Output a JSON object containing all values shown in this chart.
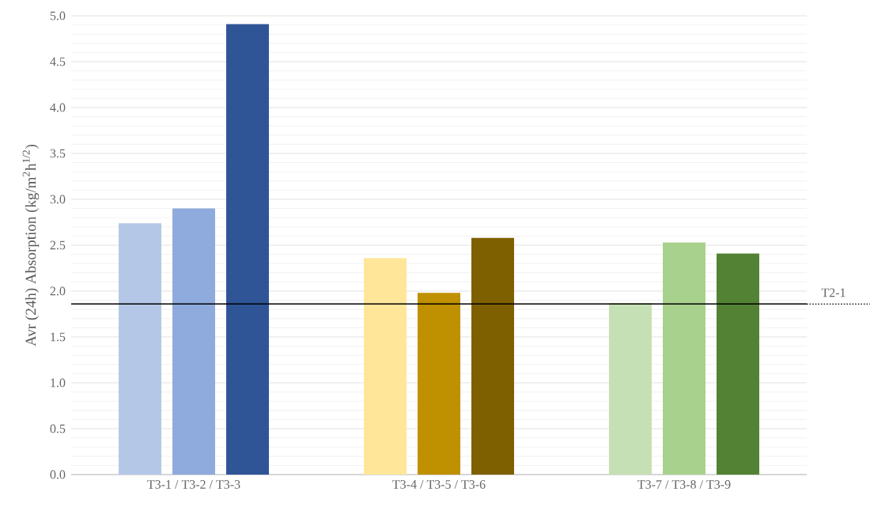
{
  "chart_data": {
    "type": "bar",
    "ylabel": "Avr (24h) Absorption (kg/m$^{2}$h$^{1/2}$)",
    "categories": [
      "T3-1 / T3-2 / T3-3",
      "T3-4 / T3-5 / T3-6",
      "T3-7 / T3-8 / T3-9"
    ],
    "series": [
      {
        "values": [
          2.74,
          2.36,
          1.87
        ],
        "colors": [
          "#b4c7e7",
          "#ffe699",
          "#c5e0b4"
        ]
      },
      {
        "values": [
          2.9,
          1.98,
          2.53
        ],
        "colors": [
          "#8faadc",
          "#bf9000",
          "#a9d18e"
        ]
      },
      {
        "values": [
          4.91,
          2.58,
          2.41
        ],
        "colors": [
          "#2f5597",
          "#7f6000",
          "#548235"
        ]
      }
    ],
    "ylim": [
      0,
      5
    ],
    "yticks": [
      {
        "value": 0,
        "label": "0.0"
      },
      {
        "value": 0.5,
        "label": "0.5"
      },
      {
        "value": 1,
        "label": "1.0"
      },
      {
        "value": 1.5,
        "label": "1.5"
      },
      {
        "value": 2,
        "label": "2.0"
      },
      {
        "value": 2.5,
        "label": "2.5"
      },
      {
        "value": 3,
        "label": "3.0"
      },
      {
        "value": 3.5,
        "label": "3.5"
      },
      {
        "value": 4,
        "label": "4.0"
      },
      {
        "value": 4.5,
        "label": "4.5"
      },
      {
        "value": 5,
        "label": "5.0"
      }
    ],
    "grid": "y",
    "ref_lines": [
      {
        "axis": "y",
        "value": 1.86,
        "label": "T2-1",
        "color": "#000000"
      }
    ]
  }
}
